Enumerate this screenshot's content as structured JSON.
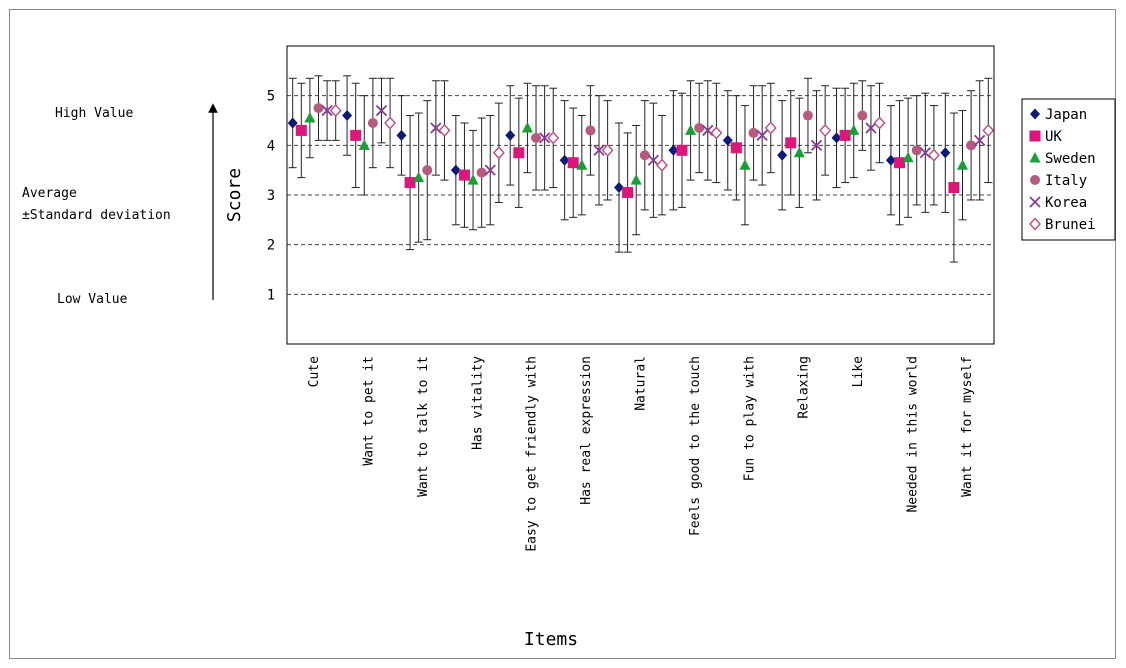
{
  "annotations": {
    "high": "High Value",
    "average_line1": "Average",
    "average_line2": "±Standard deviation",
    "low": "Low Value"
  },
  "chart_data": {
    "type": "scatter",
    "xlabel": "Items",
    "ylabel": "Score",
    "ylim": [
      0,
      6
    ],
    "yticks": [
      1,
      2,
      3,
      4,
      5
    ],
    "grid": "dashed horizontal at 1–5",
    "legend": "right",
    "categories": [
      "Cute",
      "Want to pet it",
      "Want to talk to it",
      "Has vitality",
      "Easy to get friendly with",
      "Has real expression",
      "Natural",
      "Feels good to the touch",
      "Fun to play with",
      "Relaxing",
      "Like",
      "Needed in this world",
      "Want it for myself"
    ],
    "series": [
      {
        "name": "Japan",
        "marker": "diamond",
        "color": "#0b1b7a",
        "values": [
          4.45,
          4.6,
          4.2,
          3.5,
          4.2,
          3.7,
          3.15,
          3.9,
          4.1,
          3.8,
          4.15,
          3.7,
          3.85
        ],
        "sd": [
          0.9,
          0.8,
          0.8,
          1.1,
          1.0,
          1.2,
          1.3,
          1.2,
          1.0,
          1.1,
          1.0,
          1.1,
          1.2
        ]
      },
      {
        "name": "UK",
        "marker": "square",
        "color": "#e0157a",
        "values": [
          4.3,
          4.2,
          3.25,
          3.4,
          3.85,
          3.65,
          3.05,
          3.9,
          3.95,
          4.05,
          4.2,
          3.65,
          3.15
        ],
        "sd": [
          0.95,
          1.05,
          1.35,
          1.05,
          1.1,
          1.1,
          1.2,
          1.15,
          1.05,
          1.05,
          0.95,
          1.25,
          1.5
        ]
      },
      {
        "name": "Sweden",
        "marker": "triangle",
        "color": "#14a032",
        "values": [
          4.55,
          4.0,
          3.35,
          3.3,
          4.35,
          3.6,
          3.3,
          4.3,
          3.6,
          3.85,
          4.3,
          3.75,
          3.6
        ],
        "sd": [
          0.8,
          1.0,
          1.3,
          1.0,
          0.9,
          1.0,
          1.1,
          1.0,
          1.2,
          1.1,
          0.95,
          1.2,
          1.1
        ]
      },
      {
        "name": "Italy",
        "marker": "circle",
        "color": "#b85a7e",
        "values": [
          4.75,
          4.45,
          3.5,
          3.45,
          4.15,
          4.3,
          3.8,
          4.35,
          4.25,
          4.6,
          4.6,
          3.9,
          4.0
        ],
        "sd": [
          0.65,
          0.9,
          1.4,
          1.1,
          1.05,
          0.9,
          1.1,
          0.9,
          0.95,
          0.75,
          0.7,
          1.1,
          1.1
        ]
      },
      {
        "name": "Korea",
        "marker": "x",
        "color": "#8a3a9a",
        "values": [
          4.7,
          4.7,
          4.35,
          3.5,
          4.15,
          3.9,
          3.7,
          4.3,
          4.2,
          4.0,
          4.35,
          3.85,
          4.1
        ],
        "sd": [
          0.6,
          0.65,
          0.95,
          1.1,
          1.05,
          1.1,
          1.15,
          1.0,
          1.0,
          1.1,
          0.85,
          1.2,
          1.2
        ]
      },
      {
        "name": "Brunei",
        "marker": "diamond-open",
        "color": "#c04a7a",
        "values": [
          4.7,
          4.45,
          4.3,
          3.85,
          4.15,
          3.9,
          3.6,
          4.25,
          4.35,
          4.3,
          4.45,
          3.8,
          4.3
        ],
        "sd": [
          0.6,
          0.9,
          1.0,
          1.0,
          1.0,
          1.0,
          1.0,
          1.0,
          0.9,
          0.9,
          0.8,
          1.0,
          1.05
        ]
      }
    ]
  }
}
